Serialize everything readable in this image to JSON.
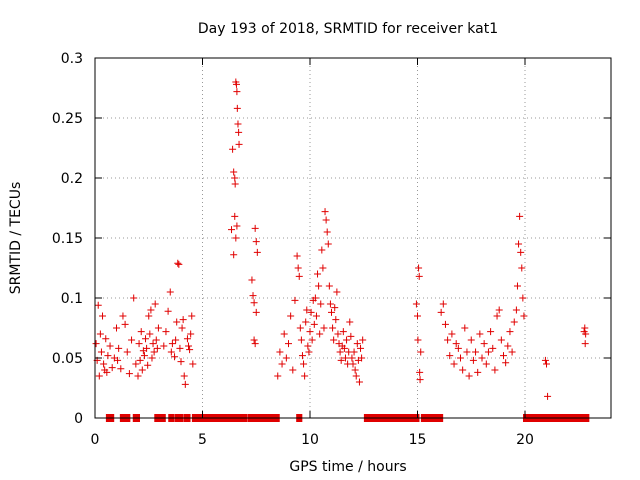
{
  "chart_data": {
    "type": "scatter",
    "title": "Day 193 of 2018, SRMTID for receiver kat1",
    "xlabel": "GPS time / hours",
    "ylabel": "SRMTID / TECUs",
    "xlim": [
      0,
      24
    ],
    "ylim": [
      0,
      0.3
    ],
    "x_ticks": [
      0,
      5,
      10,
      15,
      20
    ],
    "x_tick_labels": [
      "0",
      "5",
      "10",
      "15",
      "20"
    ],
    "y_ticks": [
      0,
      0.05,
      0.1,
      0.15,
      0.2,
      0.25,
      0.3
    ],
    "y_tick_labels": [
      "0",
      "0.05",
      "0.1",
      "0.15",
      "0.2",
      "0.25",
      "0.3"
    ],
    "grid": true,
    "marker": "+",
    "series": [
      {
        "name": "kat1 SRMTID",
        "color": "#e00000",
        "points": [
          [
            0.05,
            0.062
          ],
          [
            0.1,
            0.048
          ],
          [
            0.15,
            0.094
          ],
          [
            0.2,
            0.035
          ],
          [
            0.25,
            0.07
          ],
          [
            0.3,
            0.055
          ],
          [
            0.35,
            0.085
          ],
          [
            0.4,
            0.045
          ],
          [
            0.45,
            0.04
          ],
          [
            0.5,
            0.066
          ],
          [
            0.55,
            0.038
          ],
          [
            0.6,
            0.052
          ],
          [
            0.7,
            0.06
          ],
          [
            0.8,
            0.042
          ],
          [
            0.9,
            0.05
          ],
          [
            1.0,
            0.075
          ],
          [
            1.05,
            0.048
          ],
          [
            1.1,
            0.058
          ],
          [
            1.2,
            0.041
          ],
          [
            1.3,
            0.085
          ],
          [
            1.4,
            0.078
          ],
          [
            1.5,
            0.055
          ],
          [
            1.6,
            0.037
          ],
          [
            1.7,
            0.065
          ],
          [
            1.8,
            0.1
          ],
          [
            1.9,
            0.045
          ],
          [
            2.0,
            0.035
          ],
          [
            2.05,
            0.062
          ],
          [
            2.1,
            0.048
          ],
          [
            2.15,
            0.072
          ],
          [
            2.2,
            0.04
          ],
          [
            2.25,
            0.056
          ],
          [
            2.3,
            0.052
          ],
          [
            2.35,
            0.066
          ],
          [
            2.4,
            0.058
          ],
          [
            2.45,
            0.044
          ],
          [
            2.5,
            0.085
          ],
          [
            2.55,
            0.07
          ],
          [
            2.6,
            0.09
          ],
          [
            2.65,
            0.05
          ],
          [
            2.7,
            0.062
          ],
          [
            2.75,
            0.055
          ],
          [
            2.8,
            0.095
          ],
          [
            2.85,
            0.065
          ],
          [
            2.9,
            0.058
          ],
          [
            2.95,
            0.075
          ],
          [
            3.2,
            0.06
          ],
          [
            3.3,
            0.072
          ],
          [
            3.4,
            0.089
          ],
          [
            3.5,
            0.105
          ],
          [
            3.55,
            0.055
          ],
          [
            3.6,
            0.062
          ],
          [
            3.7,
            0.051
          ],
          [
            3.75,
            0.065
          ],
          [
            3.8,
            0.08
          ],
          [
            3.85,
            0.129
          ],
          [
            3.9,
            0.128
          ],
          [
            3.95,
            0.058
          ],
          [
            4.0,
            0.047
          ],
          [
            4.05,
            0.075
          ],
          [
            4.1,
            0.082
          ],
          [
            4.15,
            0.035
          ],
          [
            4.2,
            0.028
          ],
          [
            4.3,
            0.066
          ],
          [
            4.35,
            0.06
          ],
          [
            4.4,
            0.057
          ],
          [
            4.45,
            0.07
          ],
          [
            4.5,
            0.085
          ],
          [
            4.55,
            0.045
          ],
          [
            6.35,
            0.157
          ],
          [
            6.4,
            0.224
          ],
          [
            6.45,
            0.205
          ],
          [
            6.5,
            0.2
          ],
          [
            6.52,
            0.195
          ],
          [
            6.55,
            0.28
          ],
          [
            6.58,
            0.278
          ],
          [
            6.6,
            0.272
          ],
          [
            6.62,
            0.258
          ],
          [
            6.65,
            0.245
          ],
          [
            6.68,
            0.238
          ],
          [
            6.7,
            0.228
          ],
          [
            6.5,
            0.168
          ],
          [
            6.55,
            0.15
          ],
          [
            6.45,
            0.136
          ],
          [
            6.6,
            0.16
          ],
          [
            7.3,
            0.115
          ],
          [
            7.35,
            0.102
          ],
          [
            7.4,
            0.096
          ],
          [
            7.45,
            0.158
          ],
          [
            7.5,
            0.147
          ],
          [
            7.55,
            0.138
          ],
          [
            7.4,
            0.065
          ],
          [
            7.45,
            0.062
          ],
          [
            7.5,
            0.088
          ],
          [
            8.5,
            0.035
          ],
          [
            8.6,
            0.055
          ],
          [
            8.7,
            0.045
          ],
          [
            8.8,
            0.07
          ],
          [
            8.9,
            0.05
          ],
          [
            9.0,
            0.062
          ],
          [
            9.1,
            0.085
          ],
          [
            9.2,
            0.04
          ],
          [
            9.3,
            0.098
          ],
          [
            9.4,
            0.135
          ],
          [
            9.45,
            0.125
          ],
          [
            9.5,
            0.118
          ],
          [
            9.55,
            0.075
          ],
          [
            9.6,
            0.065
          ],
          [
            9.65,
            0.052
          ],
          [
            9.7,
            0.045
          ],
          [
            9.75,
            0.035
          ],
          [
            9.8,
            0.08
          ],
          [
            9.85,
            0.09
          ],
          [
            9.9,
            0.06
          ],
          [
            9.95,
            0.055
          ],
          [
            10.0,
            0.072
          ],
          [
            10.05,
            0.088
          ],
          [
            10.1,
            0.065
          ],
          [
            10.15,
            0.098
          ],
          [
            10.2,
            0.078
          ],
          [
            10.25,
            0.1
          ],
          [
            10.3,
            0.085
          ],
          [
            10.35,
            0.12
          ],
          [
            10.4,
            0.11
          ],
          [
            10.45,
            0.07
          ],
          [
            10.5,
            0.095
          ],
          [
            10.55,
            0.14
          ],
          [
            10.6,
            0.125
          ],
          [
            10.65,
            0.075
          ],
          [
            10.7,
            0.172
          ],
          [
            10.75,
            0.165
          ],
          [
            10.8,
            0.155
          ],
          [
            10.85,
            0.145
          ],
          [
            10.9,
            0.11
          ],
          [
            10.95,
            0.095
          ],
          [
            11.0,
            0.088
          ],
          [
            11.05,
            0.075
          ],
          [
            11.1,
            0.065
          ],
          [
            11.15,
            0.092
          ],
          [
            11.2,
            0.082
          ],
          [
            11.25,
            0.105
          ],
          [
            11.3,
            0.07
          ],
          [
            11.35,
            0.062
          ],
          [
            11.4,
            0.055
          ],
          [
            11.45,
            0.048
          ],
          [
            11.5,
            0.06
          ],
          [
            11.55,
            0.072
          ],
          [
            11.6,
            0.058
          ],
          [
            11.65,
            0.05
          ],
          [
            11.7,
            0.065
          ],
          [
            11.75,
            0.045
          ],
          [
            11.8,
            0.055
          ],
          [
            11.85,
            0.08
          ],
          [
            11.9,
            0.068
          ],
          [
            11.95,
            0.05
          ],
          [
            12.0,
            0.045
          ],
          [
            12.05,
            0.055
          ],
          [
            12.1,
            0.04
          ],
          [
            12.15,
            0.035
          ],
          [
            12.2,
            0.062
          ],
          [
            12.25,
            0.048
          ],
          [
            12.3,
            0.03
          ],
          [
            12.35,
            0.058
          ],
          [
            12.4,
            0.05
          ],
          [
            12.45,
            0.065
          ],
          [
            14.95,
            0.095
          ],
          [
            15.0,
            0.085
          ],
          [
            15.02,
            0.065
          ],
          [
            15.05,
            0.125
          ],
          [
            15.08,
            0.118
          ],
          [
            15.1,
            0.038
          ],
          [
            15.12,
            0.032
          ],
          [
            15.15,
            0.055
          ],
          [
            16.1,
            0.088
          ],
          [
            16.2,
            0.095
          ],
          [
            16.3,
            0.078
          ],
          [
            16.4,
            0.065
          ],
          [
            16.5,
            0.052
          ],
          [
            16.6,
            0.07
          ],
          [
            16.7,
            0.045
          ],
          [
            16.8,
            0.062
          ],
          [
            16.9,
            0.058
          ],
          [
            17.0,
            0.05
          ],
          [
            17.1,
            0.04
          ],
          [
            17.2,
            0.075
          ],
          [
            17.3,
            0.055
          ],
          [
            17.4,
            0.035
          ],
          [
            17.5,
            0.065
          ],
          [
            17.6,
            0.048
          ],
          [
            17.7,
            0.055
          ],
          [
            17.8,
            0.038
          ],
          [
            17.9,
            0.07
          ],
          [
            18.0,
            0.05
          ],
          [
            18.1,
            0.062
          ],
          [
            18.2,
            0.045
          ],
          [
            18.3,
            0.055
          ],
          [
            18.4,
            0.072
          ],
          [
            18.5,
            0.058
          ],
          [
            18.6,
            0.04
          ],
          [
            18.7,
            0.085
          ],
          [
            18.8,
            0.09
          ],
          [
            18.9,
            0.065
          ],
          [
            19.0,
            0.052
          ],
          [
            19.1,
            0.046
          ],
          [
            19.2,
            0.06
          ],
          [
            19.3,
            0.072
          ],
          [
            19.4,
            0.055
          ],
          [
            19.5,
            0.08
          ],
          [
            19.6,
            0.09
          ],
          [
            19.65,
            0.11
          ],
          [
            19.7,
            0.145
          ],
          [
            19.75,
            0.168
          ],
          [
            19.8,
            0.138
          ],
          [
            19.85,
            0.125
          ],
          [
            19.9,
            0.1
          ],
          [
            19.95,
            0.085
          ],
          [
            20.95,
            0.048
          ],
          [
            21.0,
            0.045
          ],
          [
            21.05,
            0.018
          ],
          [
            22.75,
            0.072
          ],
          [
            22.78,
            0.075
          ],
          [
            22.8,
            0.062
          ],
          [
            22.82,
            0.07
          ]
        ]
      }
    ],
    "zero_intervals": [
      [
        0.6,
        0.8
      ],
      [
        1.25,
        1.55
      ],
      [
        1.85,
        2.0
      ],
      [
        2.85,
        3.2
      ],
      [
        3.5,
        3.6
      ],
      [
        3.8,
        4.0
      ],
      [
        4.2,
        4.35
      ],
      [
        4.6,
        7.0
      ],
      [
        7.2,
        8.5
      ],
      [
        9.45,
        9.55
      ],
      [
        12.6,
        15.0
      ],
      [
        15.25,
        16.1
      ],
      [
        20.0,
        22.9
      ]
    ]
  }
}
